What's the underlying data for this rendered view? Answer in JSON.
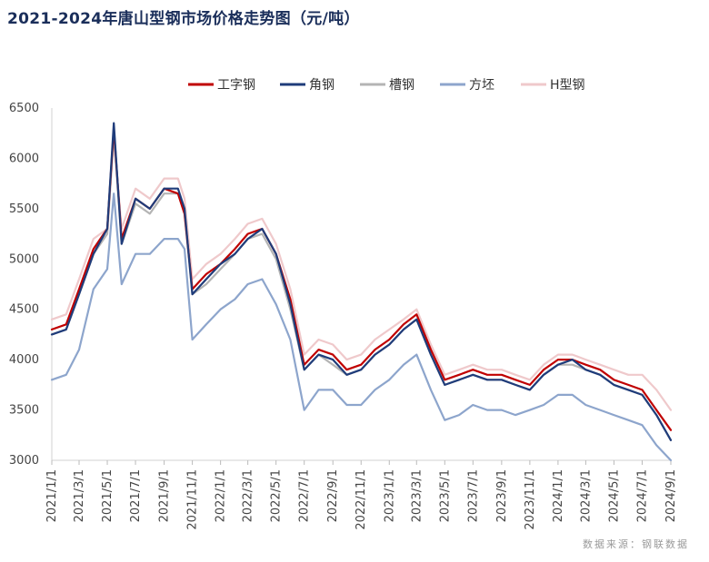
{
  "title": "2021-2024年唐山型钢市场价格走势图（元/吨）",
  "source": "数据来源：钢联数据",
  "chart_data": {
    "type": "line",
    "title": "2021-2024年唐山型钢市场价格走势图（元/吨）",
    "xlabel": "",
    "ylabel": "",
    "ylim": [
      3000,
      6500
    ],
    "yticks": [
      3000,
      3500,
      4000,
      4500,
      5000,
      5500,
      6000,
      6500
    ],
    "x_tick_labels": [
      "2021/1/1",
      "2021/3/1",
      "2021/5/1",
      "2021/7/1",
      "2021/9/1",
      "2021/11/1",
      "2022/1/1",
      "2022/3/1",
      "2022/5/1",
      "2022/7/1",
      "2022/9/1",
      "2022/11/1",
      "2023/1/1",
      "2023/3/1",
      "2023/5/1",
      "2023/7/1",
      "2023/9/1",
      "2023/11/1",
      "2024/1/1",
      "2024/3/1",
      "2024/5/1",
      "2024/7/1",
      "2024/9/1"
    ],
    "x": [
      "2021/1/1",
      "2021/2/1",
      "2021/3/1",
      "2021/4/1",
      "2021/5/1",
      "2021/5/15",
      "2021/6/1",
      "2021/7/1",
      "2021/8/1",
      "2021/9/1",
      "2021/10/1",
      "2021/10/15",
      "2021/11/1",
      "2021/12/1",
      "2022/1/1",
      "2022/2/1",
      "2022/3/1",
      "2022/4/1",
      "2022/5/1",
      "2022/6/1",
      "2022/7/1",
      "2022/8/1",
      "2022/9/1",
      "2022/10/1",
      "2022/11/1",
      "2022/12/1",
      "2023/1/1",
      "2023/2/1",
      "2023/3/1",
      "2023/4/1",
      "2023/5/1",
      "2023/6/1",
      "2023/7/1",
      "2023/8/1",
      "2023/9/1",
      "2023/10/1",
      "2023/11/1",
      "2023/12/1",
      "2024/1/1",
      "2024/2/1",
      "2024/3/1",
      "2024/4/1",
      "2024/5/1",
      "2024/6/1",
      "2024/7/1",
      "2024/8/1",
      "2024/9/1"
    ],
    "series": [
      {
        "name": "工字钢",
        "color": "#c00000",
        "values": [
          4300,
          4350,
          4700,
          5100,
          5300,
          6300,
          5200,
          5600,
          5500,
          5700,
          5650,
          5450,
          4700,
          4850,
          4950,
          5100,
          5250,
          5300,
          5050,
          4600,
          3950,
          4100,
          4050,
          3900,
          3950,
          4100,
          4200,
          4350,
          4450,
          4100,
          3800,
          3850,
          3900,
          3850,
          3850,
          3800,
          3750,
          3900,
          4000,
          4000,
          3950,
          3900,
          3800,
          3750,
          3700,
          3500,
          3300
        ]
      },
      {
        "name": "角钢",
        "color": "#1f3c7a",
        "values": [
          4250,
          4300,
          4650,
          5050,
          5300,
          6350,
          5150,
          5600,
          5500,
          5700,
          5700,
          5500,
          4650,
          4800,
          4950,
          5050,
          5200,
          5300,
          5050,
          4550,
          3900,
          4050,
          4000,
          3850,
          3900,
          4050,
          4150,
          4300,
          4400,
          4050,
          3750,
          3800,
          3850,
          3800,
          3800,
          3750,
          3700,
          3850,
          3950,
          4000,
          3900,
          3850,
          3750,
          3700,
          3650,
          3450,
          3200
        ]
      },
      {
        "name": "槽钢",
        "color": "#b4b4b4",
        "values": [
          4250,
          4300,
          4650,
          5050,
          5250,
          6250,
          5150,
          5550,
          5450,
          5650,
          5650,
          5450,
          4650,
          4750,
          4900,
          5050,
          5200,
          5250,
          5000,
          4500,
          3900,
          4050,
          3950,
          3850,
          3900,
          4050,
          4150,
          4300,
          4400,
          4050,
          3750,
          3800,
          3850,
          3800,
          3800,
          3750,
          3700,
          3850,
          3950,
          3950,
          3900,
          3850,
          3750,
          3700,
          3650,
          3450,
          3200
        ]
      },
      {
        "name": "方坯",
        "color": "#8da5cc",
        "values": [
          3800,
          3850,
          4100,
          4700,
          4900,
          5650,
          4750,
          5050,
          5050,
          5200,
          5200,
          5100,
          4200,
          4350,
          4500,
          4600,
          4750,
          4800,
          4550,
          4200,
          3500,
          3700,
          3700,
          3550,
          3550,
          3700,
          3800,
          3950,
          4050,
          3700,
          3400,
          3450,
          3550,
          3500,
          3500,
          3450,
          3500,
          3550,
          3650,
          3650,
          3550,
          3500,
          3450,
          3400,
          3350,
          3150,
          3000
        ]
      },
      {
        "name": "H型钢",
        "color": "#efc9cb",
        "values": [
          4400,
          4450,
          4800,
          5200,
          5300,
          6200,
          5300,
          5700,
          5600,
          5800,
          5800,
          5600,
          4800,
          4950,
          5050,
          5200,
          5350,
          5400,
          5150,
          4700,
          4050,
          4200,
          4150,
          4000,
          4050,
          4200,
          4300,
          4400,
          4500,
          4150,
          3850,
          3900,
          3950,
          3900,
          3900,
          3850,
          3800,
          3950,
          4050,
          4050,
          4000,
          3950,
          3900,
          3850,
          3850,
          3700,
          3500
        ]
      }
    ],
    "legend_position": "top",
    "grid": false
  }
}
